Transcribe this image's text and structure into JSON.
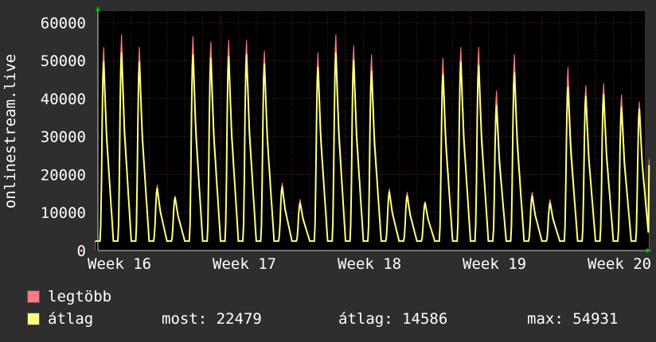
{
  "chart_data": {
    "type": "area",
    "ylabel": "onlinestream.live",
    "yticks": [
      0,
      10000,
      20000,
      30000,
      40000,
      50000,
      60000
    ],
    "ylim": [
      0,
      63000
    ],
    "xlim": [
      0,
      4.44
    ],
    "xticks": [
      {
        "x": 0.0,
        "label": "Week 16"
      },
      {
        "x": 1.0,
        "label": "Week 17"
      },
      {
        "x": 2.0,
        "label": "Week 18"
      },
      {
        "x": 3.0,
        "label": "Week 19"
      },
      {
        "x": 4.0,
        "label": "Week 20"
      }
    ],
    "grid": true,
    "series": [
      {
        "name": "legtöbb",
        "color": "#ff7a80",
        "daily_peaks": [
          56000,
          59500,
          56000,
          18000,
          15000,
          59000,
          57500,
          58000,
          58000,
          55000,
          18500,
          14000,
          54500,
          59500,
          56500,
          54000,
          17000,
          16000,
          13500,
          53000,
          56000,
          56000,
          44000,
          54000,
          16000,
          14000,
          50500,
          45500,
          46000,
          43000,
          41000
        ],
        "last": 24000
      },
      {
        "name": "átlag",
        "color": "#ffff80",
        "daily_peaks": [
          52000,
          54500,
          52000,
          17000,
          14500,
          54000,
          53000,
          53500,
          54000,
          51500,
          17500,
          13000,
          50500,
          54500,
          52500,
          49500,
          16000,
          15000,
          13000,
          48500,
          52000,
          51000,
          40000,
          49000,
          15000,
          13000,
          45000,
          42500,
          43000,
          39500,
          39000
        ],
        "last": 22479
      }
    ],
    "daily_min": 2500
  },
  "legend": {
    "max_label": "legtöbb",
    "avg_label": "átlag",
    "now_text": "most: 22479",
    "avg_text": "átlag: 14586",
    "max_text": "max: 54931"
  }
}
